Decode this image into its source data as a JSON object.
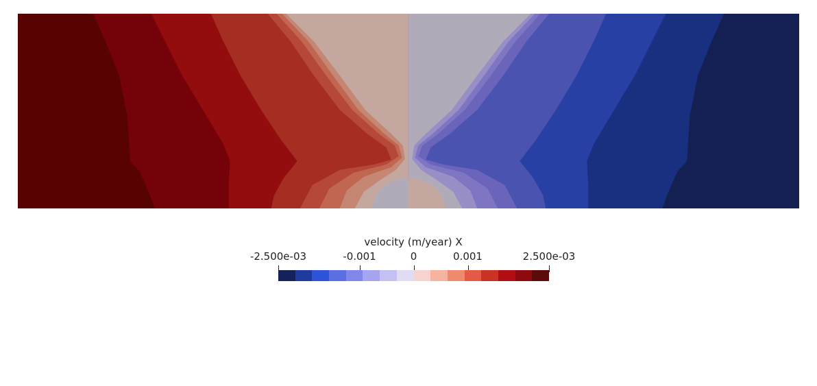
{
  "chart_data": {
    "type": "heatmap",
    "title": "",
    "scalar_name": "velocity (m/year) X",
    "range": [
      -0.0025,
      0.0025
    ],
    "colormap": "Cool to Warm (Extended), 16 discrete bands",
    "colorbar": {
      "label": "velocity (m/year) X",
      "orientation": "horizontal",
      "placement": "below-field",
      "ticks": [
        {
          "value": -0.0025,
          "label": "-2.500e-03"
        },
        {
          "value": -0.001,
          "label": "-0.001"
        },
        {
          "value": 0,
          "label": "0"
        },
        {
          "value": 0.001,
          "label": "0.001"
        },
        {
          "value": 0.0025,
          "label": "2.500e-03"
        }
      ],
      "band_colors": [
        "#15215a",
        "#1e3b9e",
        "#2d54d6",
        "#5b6fe0",
        "#7f88ea",
        "#a7a5f0",
        "#c4c0f1",
        "#e0dcf3",
        "#f5d4cf",
        "#f7b3a2",
        "#ef8a6e",
        "#e25b45",
        "#ca3226",
        "#b10f14",
        "#8c0a10",
        "#5c0a0a"
      ]
    },
    "field": {
      "description_axis": "x horizontal, symmetric about center",
      "left_half_sign": "positive",
      "right_half_sign": "negative",
      "left_bands": [
        {
          "value": 0.0024,
          "color": "#560302"
        },
        {
          "value": 0.0021,
          "color": "#740208"
        },
        {
          "value": 0.0018,
          "color": "#930c0e"
        },
        {
          "value": 0.0014,
          "color": "#a52d22"
        },
        {
          "value": 0.0011,
          "color": "#b54838"
        },
        {
          "value": 0.0008,
          "color": "#c06651"
        },
        {
          "value": 0.0005,
          "color": "#c58773"
        },
        {
          "value": 0.0002,
          "color": "#c4a79e"
        }
      ],
      "right_bands": [
        {
          "value": -0.0002,
          "color": "#b1aab8"
        },
        {
          "value": -0.0005,
          "color": "#988fc6"
        },
        {
          "value": -0.0008,
          "color": "#7f76c3"
        },
        {
          "value": -0.0011,
          "color": "#6a64bb"
        },
        {
          "value": -0.0014,
          "color": "#4a53b0"
        },
        {
          "value": -0.0018,
          "color": "#2840a3"
        },
        {
          "value": -0.0021,
          "color": "#192f80"
        },
        {
          "value": -0.0024,
          "color": "#152052"
        }
      ]
    }
  }
}
